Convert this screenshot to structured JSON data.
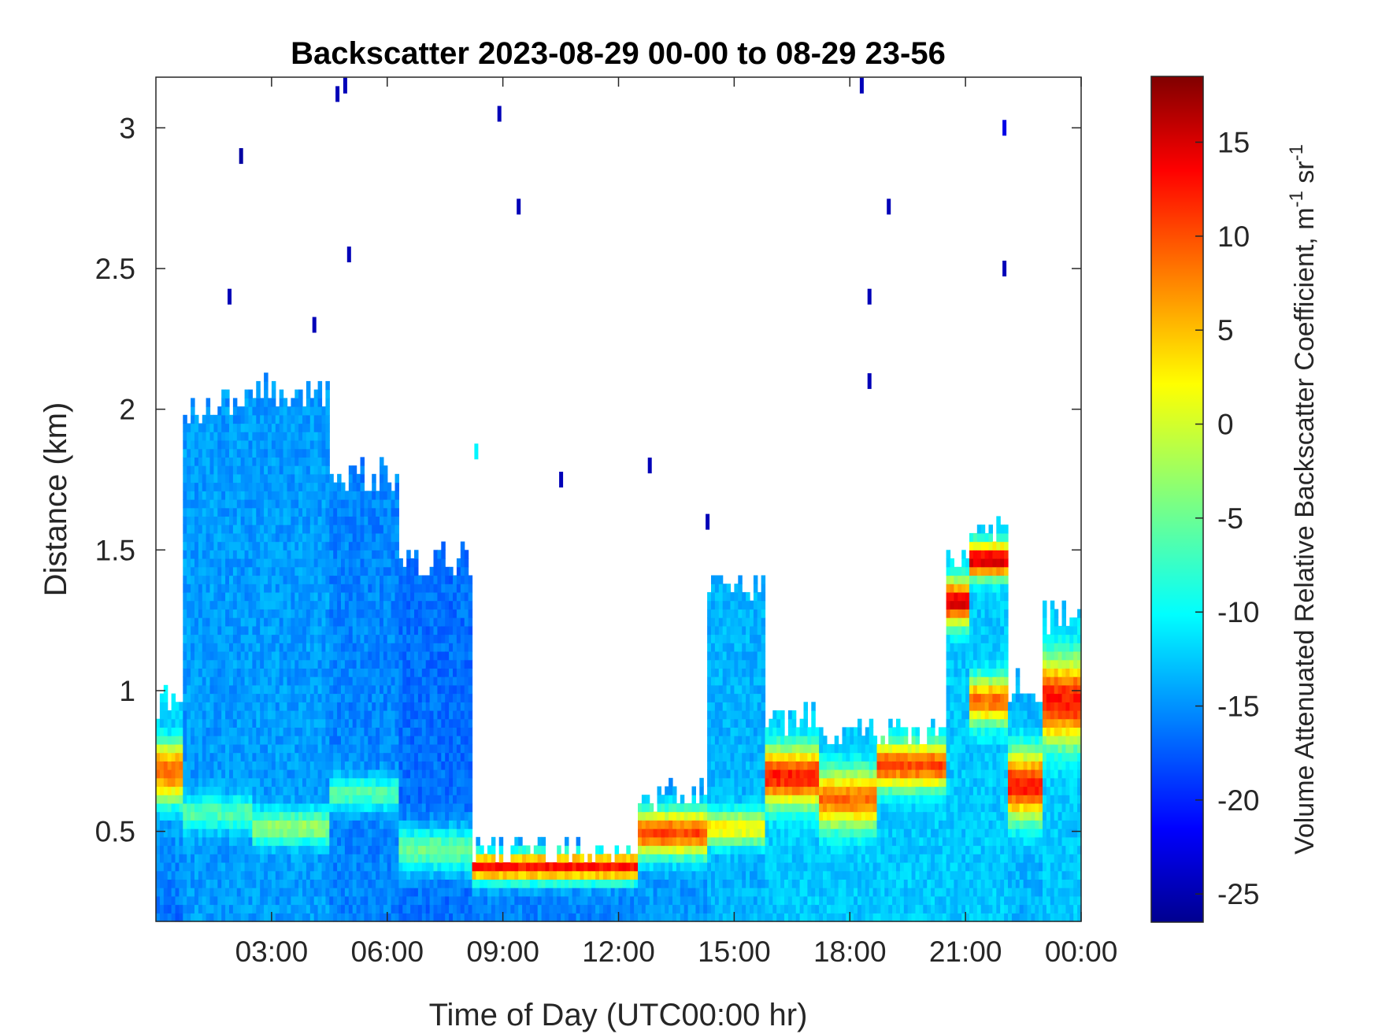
{
  "chart_data": {
    "type": "heatmap",
    "title": "Backscatter 2023-08-29 00-00 to 08-29 23-56",
    "xlabel": "Time of Day (UTC00:00 hr)",
    "ylabel": "Distance (km)",
    "xlim": [
      0,
      24
    ],
    "ylim": [
      0.18,
      3.18
    ],
    "x_ticks": [
      3,
      6,
      9,
      12,
      15,
      18,
      21,
      24
    ],
    "x_tick_labels": [
      "03:00",
      "06:00",
      "09:00",
      "12:00",
      "15:00",
      "18:00",
      "21:00",
      "00:00"
    ],
    "y_ticks": [
      0.5,
      1,
      1.5,
      2,
      2.5,
      3
    ],
    "y_tick_labels": [
      "0.5",
      "1",
      "1.5",
      "2",
      "2.5",
      "3"
    ],
    "colorbar": {
      "label_main": "Volume Attenuated Relative Backscatter Coefficient, m",
      "label_sup1": "-1",
      "label_mid": " sr",
      "label_sup2": "-1",
      "colormap": "jet",
      "clim": [
        -26.5,
        18.5
      ],
      "ticks": [
        -25,
        -20,
        -15,
        -10,
        -5,
        0,
        5,
        10,
        15
      ],
      "tick_labels": [
        "-25",
        "-20",
        "-15",
        "-10",
        "-5",
        "0",
        "5",
        "10",
        "15"
      ]
    },
    "grid": false,
    "legend": "none",
    "regions": [
      {
        "x": [
          0.0,
          0.7
        ],
        "ybot": 0.18,
        "ytop": 0.95,
        "vlow": -16,
        "vtop": -11,
        "bands": [
          {
            "y": 0.7,
            "w": 0.12,
            "v": 8
          }
        ]
      },
      {
        "x": [
          0.7,
          2.5
        ],
        "ybot": 0.18,
        "ytop": 2.0,
        "vlow": -14,
        "vtop": -24,
        "bands": [
          {
            "y": 0.55,
            "w": 0.06,
            "v": -6
          }
        ]
      },
      {
        "x": [
          2.5,
          4.5
        ],
        "ybot": 0.18,
        "ytop": 2.05,
        "vlow": -14,
        "vtop": -24,
        "bands": [
          {
            "y": 0.5,
            "w": 0.06,
            "v": -3
          }
        ]
      },
      {
        "x": [
          4.5,
          6.3
        ],
        "ybot": 0.18,
        "ytop": 1.75,
        "vlow": -15,
        "vtop": -24,
        "bands": [
          {
            "y": 0.62,
            "w": 0.06,
            "v": -6
          }
        ]
      },
      {
        "x": [
          6.3,
          8.2
        ],
        "ybot": 0.18,
        "ytop": 1.45,
        "vlow": -16,
        "vtop": -23,
        "bands": [
          {
            "y": 0.42,
            "w": 0.08,
            "v": -5
          }
        ]
      },
      {
        "x": [
          8.2,
          12.5
        ],
        "ybot": 0.18,
        "ytop": 0.42,
        "vlow": -15,
        "vtop": -20,
        "bands": [
          {
            "y": 0.36,
            "w": 0.05,
            "v": 12
          }
        ]
      },
      {
        "x": [
          12.5,
          14.3
        ],
        "ybot": 0.18,
        "ytop": 0.62,
        "vlow": -14,
        "vtop": -18,
        "bands": [
          {
            "y": 0.48,
            "w": 0.08,
            "v": 10
          }
        ]
      },
      {
        "x": [
          14.3,
          15.8
        ],
        "ybot": 0.18,
        "ytop": 1.35,
        "vlow": -13,
        "vtop": -22,
        "bands": [
          {
            "y": 0.5,
            "w": 0.06,
            "v": 2
          }
        ]
      },
      {
        "x": [
          15.8,
          17.2
        ],
        "ybot": 0.18,
        "ytop": 0.88,
        "vlow": -12,
        "vtop": -18,
        "bands": [
          {
            "y": 0.68,
            "w": 0.1,
            "v": 12
          }
        ]
      },
      {
        "x": [
          17.2,
          18.7
        ],
        "ybot": 0.18,
        "ytop": 0.85,
        "vlow": -12,
        "vtop": -18,
        "bands": [
          {
            "y": 0.6,
            "w": 0.1,
            "v": 8
          }
        ]
      },
      {
        "x": [
          18.7,
          20.5
        ],
        "ybot": 0.18,
        "ytop": 0.85,
        "vlow": -12,
        "vtop": -17,
        "bands": [
          {
            "y": 0.72,
            "w": 0.08,
            "v": 10
          }
        ]
      },
      {
        "x": [
          20.5,
          21.1
        ],
        "ybot": 0.18,
        "ytop": 1.45,
        "vlow": -12,
        "vtop": -15,
        "bands": [
          {
            "y": 1.3,
            "w": 0.08,
            "v": 14
          }
        ]
      },
      {
        "x": [
          21.1,
          22.1
        ],
        "ybot": 0.18,
        "ytop": 1.55,
        "vlow": -12,
        "vtop": -15,
        "bands": [
          {
            "y": 1.45,
            "w": 0.06,
            "v": 15
          },
          {
            "y": 0.95,
            "w": 0.08,
            "v": 8
          }
        ]
      },
      {
        "x": [
          22.1,
          23.0
        ],
        "ybot": 0.18,
        "ytop": 1.0,
        "vlow": -13,
        "vtop": -16,
        "bands": [
          {
            "y": 0.65,
            "w": 0.12,
            "v": 12
          }
        ]
      },
      {
        "x": [
          23.0,
          24.0
        ],
        "ybot": 0.18,
        "ytop": 1.25,
        "vlow": -12,
        "vtop": -16,
        "bands": [
          {
            "y": 0.95,
            "w": 0.15,
            "v": 12
          }
        ]
      }
    ],
    "specks": [
      {
        "x": 2.2,
        "y": 2.9,
        "v": -25
      },
      {
        "x": 4.7,
        "y": 3.12,
        "v": -24
      },
      {
        "x": 4.9,
        "y": 3.15,
        "v": -24
      },
      {
        "x": 5.0,
        "y": 2.55,
        "v": -24
      },
      {
        "x": 8.9,
        "y": 3.05,
        "v": -24
      },
      {
        "x": 9.4,
        "y": 2.72,
        "v": -24
      },
      {
        "x": 18.3,
        "y": 3.15,
        "v": -24
      },
      {
        "x": 19.0,
        "y": 2.72,
        "v": -24
      },
      {
        "x": 22.0,
        "y": 3.0,
        "v": -22
      },
      {
        "x": 22.0,
        "y": 2.5,
        "v": -24
      },
      {
        "x": 18.5,
        "y": 2.4,
        "v": -24
      },
      {
        "x": 18.5,
        "y": 2.1,
        "v": -24
      },
      {
        "x": 4.1,
        "y": 2.3,
        "v": -24
      },
      {
        "x": 1.9,
        "y": 2.4,
        "v": -24
      },
      {
        "x": 10.5,
        "y": 1.75,
        "v": -24
      },
      {
        "x": 14.3,
        "y": 1.6,
        "v": -24
      },
      {
        "x": 12.8,
        "y": 1.8,
        "v": -24
      },
      {
        "x": 8.3,
        "y": 1.85,
        "v": -10
      }
    ]
  }
}
